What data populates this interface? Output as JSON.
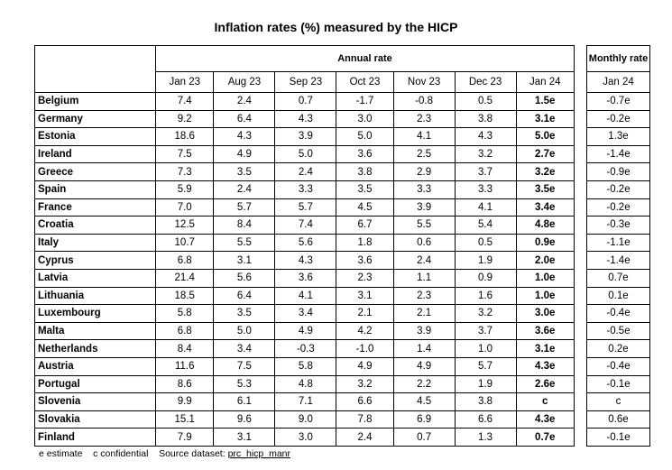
{
  "title": "Inflation rates (%) measured by the HICP",
  "annual_header": "Annual rate",
  "monthly_header": "Monthly rate",
  "columns": [
    "Jan 23",
    "Aug 23",
    "Sep 23",
    "Oct 23",
    "Nov 23",
    "Dec 23",
    "Jan 24"
  ],
  "monthly_column": "Jan 24",
  "rows": [
    {
      "country": "Belgium",
      "values": [
        "7.4",
        "2.4",
        "0.7",
        "-1.7",
        "-0.8",
        "0.5",
        "1.5e"
      ],
      "monthly": "-0.7e"
    },
    {
      "country": "Germany",
      "values": [
        "9.2",
        "6.4",
        "4.3",
        "3.0",
        "2.3",
        "3.8",
        "3.1e"
      ],
      "monthly": "-0.2e"
    },
    {
      "country": "Estonia",
      "values": [
        "18.6",
        "4.3",
        "3.9",
        "5.0",
        "4.1",
        "4.3",
        "5.0e"
      ],
      "monthly": "1.3e"
    },
    {
      "country": "Ireland",
      "values": [
        "7.5",
        "4.9",
        "5.0",
        "3.6",
        "2.5",
        "3.2",
        "2.7e"
      ],
      "monthly": "-1.4e"
    },
    {
      "country": "Greece",
      "values": [
        "7.3",
        "3.5",
        "2.4",
        "3.8",
        "2.9",
        "3.7",
        "3.2e"
      ],
      "monthly": "-0.9e"
    },
    {
      "country": "Spain",
      "values": [
        "5.9",
        "2.4",
        "3.3",
        "3.5",
        "3.3",
        "3.3",
        "3.5e"
      ],
      "monthly": "-0.2e"
    },
    {
      "country": "France",
      "values": [
        "7.0",
        "5.7",
        "5.7",
        "4.5",
        "3.9",
        "4.1",
        "3.4e"
      ],
      "monthly": "-0.2e"
    },
    {
      "country": "Croatia",
      "values": [
        "12.5",
        "8.4",
        "7.4",
        "6.7",
        "5.5",
        "5.4",
        "4.8e"
      ],
      "monthly": "-0.3e"
    },
    {
      "country": "Italy",
      "values": [
        "10.7",
        "5.5",
        "5.6",
        "1.8",
        "0.6",
        "0.5",
        "0.9e"
      ],
      "monthly": "-1.1e"
    },
    {
      "country": "Cyprus",
      "values": [
        "6.8",
        "3.1",
        "4.3",
        "3.6",
        "2.4",
        "1.9",
        "2.0e"
      ],
      "monthly": "-1.4e"
    },
    {
      "country": "Latvia",
      "values": [
        "21.4",
        "5.6",
        "3.6",
        "2.3",
        "1.1",
        "0.9",
        "1.0e"
      ],
      "monthly": "0.7e"
    },
    {
      "country": "Lithuania",
      "values": [
        "18.5",
        "6.4",
        "4.1",
        "3.1",
        "2.3",
        "1.6",
        "1.0e"
      ],
      "monthly": "0.1e"
    },
    {
      "country": "Luxembourg",
      "values": [
        "5.8",
        "3.5",
        "3.4",
        "2.1",
        "2.1",
        "3.2",
        "3.0e"
      ],
      "monthly": "-0.4e"
    },
    {
      "country": "Malta",
      "values": [
        "6.8",
        "5.0",
        "4.9",
        "4.2",
        "3.9",
        "3.7",
        "3.6e"
      ],
      "monthly": "-0.5e"
    },
    {
      "country": "Netherlands",
      "values": [
        "8.4",
        "3.4",
        "-0.3",
        "-1.0",
        "1.4",
        "1.0",
        "3.1e"
      ],
      "monthly": "0.2e"
    },
    {
      "country": "Austria",
      "values": [
        "11.6",
        "7.5",
        "5.8",
        "4.9",
        "4.9",
        "5.7",
        "4.3e"
      ],
      "monthly": "-0.4e"
    },
    {
      "country": "Portugal",
      "values": [
        "8.6",
        "5.3",
        "4.8",
        "3.2",
        "2.2",
        "1.9",
        "2.6e"
      ],
      "monthly": "-0.1e"
    },
    {
      "country": "Slovenia",
      "values": [
        "9.9",
        "6.1",
        "7.1",
        "6.6",
        "4.5",
        "3.8",
        "c"
      ],
      "monthly": "c"
    },
    {
      "country": "Slovakia",
      "values": [
        "15.1",
        "9.6",
        "9.0",
        "7.8",
        "6.9",
        "6.6",
        "4.3e"
      ],
      "monthly": "0.6e"
    },
    {
      "country": "Finland",
      "values": [
        "7.9",
        "3.1",
        "3.0",
        "2.4",
        "0.7",
        "1.3",
        "0.7e"
      ],
      "monthly": "-0.1e"
    }
  ],
  "notes": {
    "estimate": "e estimate",
    "confidential": "c confidential",
    "source_label": "Source dataset:",
    "source_name": "prc_hicp_manr"
  }
}
